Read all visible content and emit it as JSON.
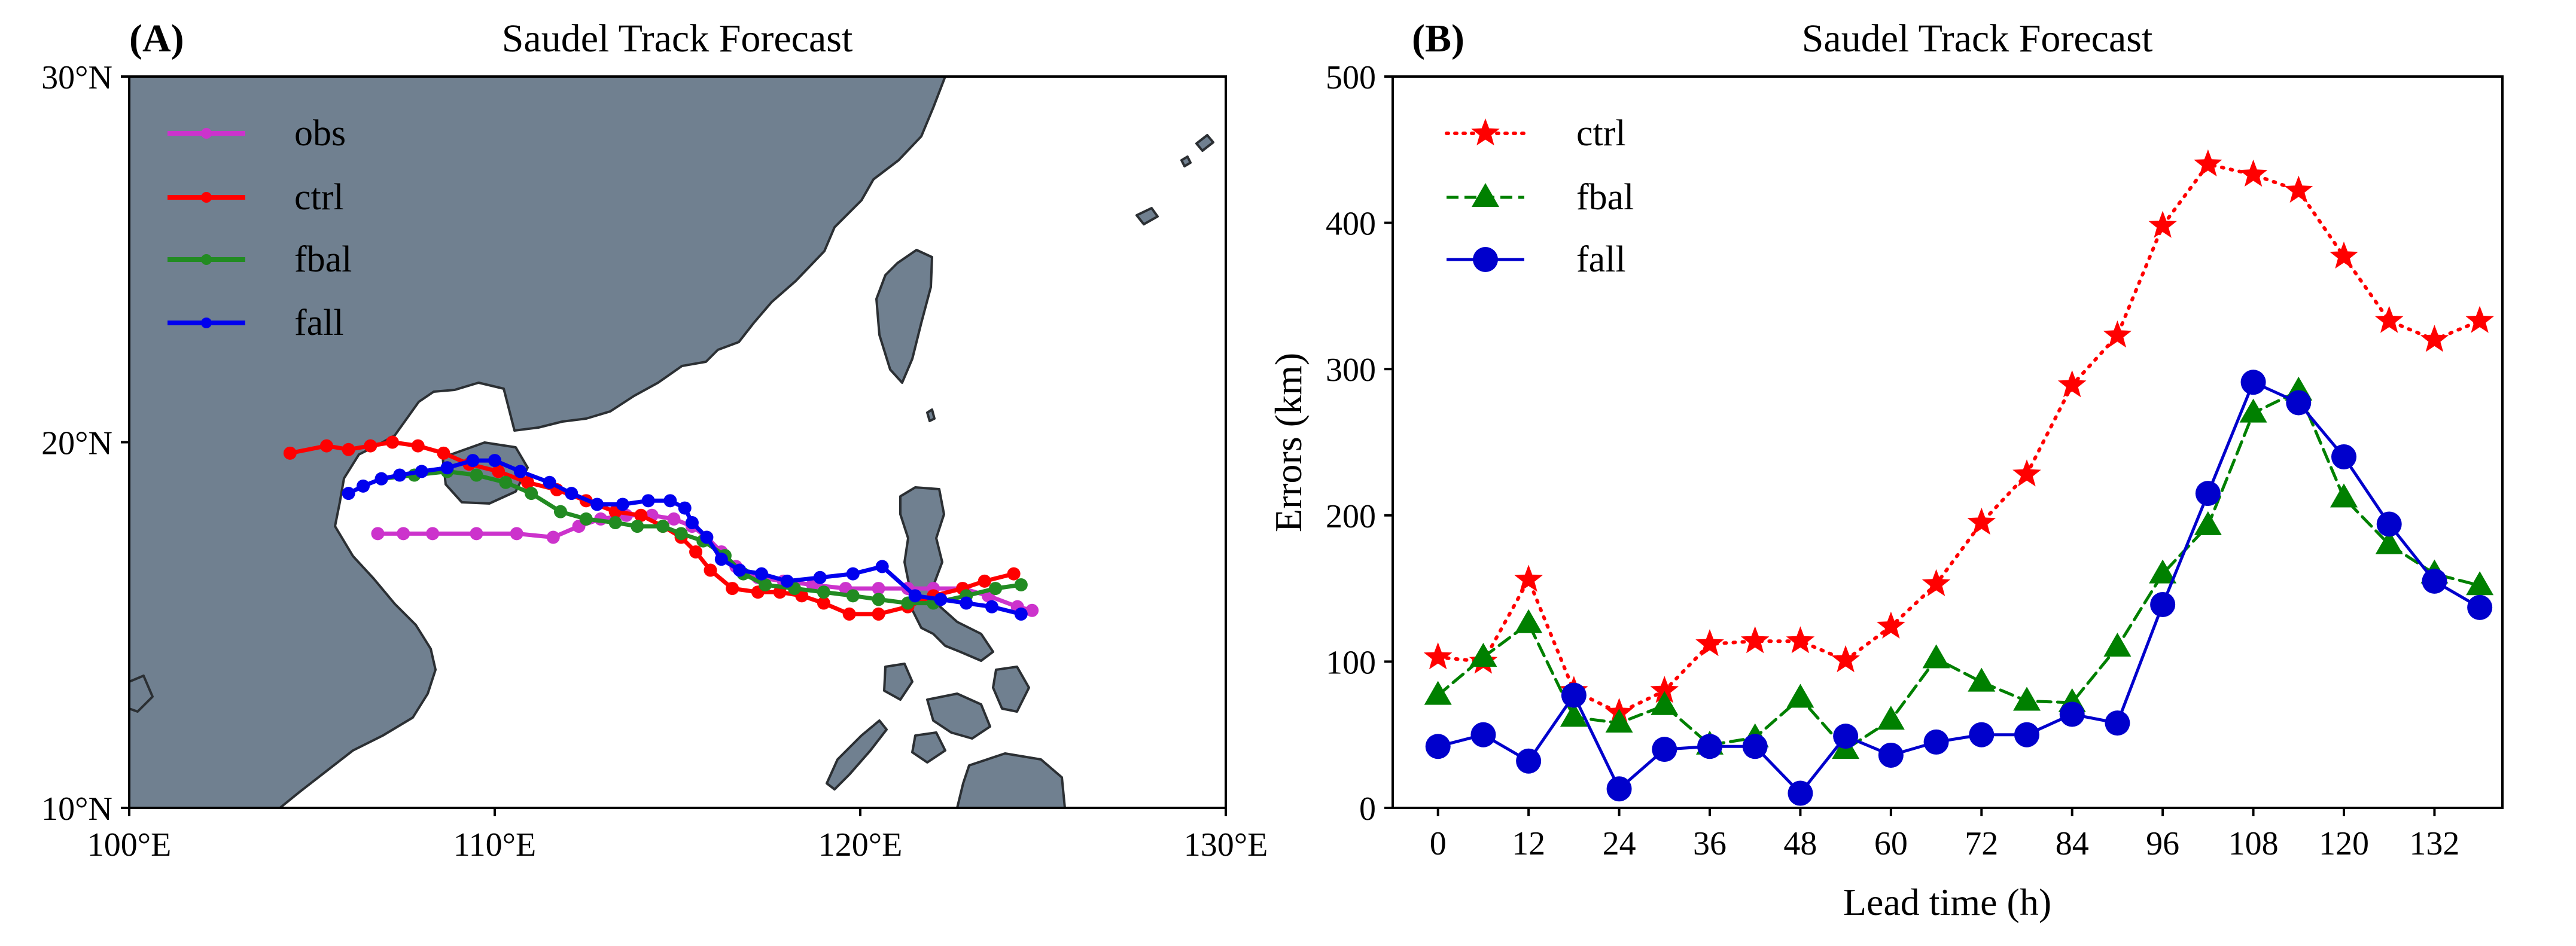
{
  "chart_data": [
    {
      "type": "map-track",
      "panel_label": "(A)",
      "title": "Saudel Track Forecast",
      "xlim": [
        100,
        130
      ],
      "ylim": [
        10,
        30
      ],
      "xticks": [
        100,
        110,
        120,
        130
      ],
      "yticks": [
        10,
        20,
        30
      ],
      "xtick_labels": [
        "100°E",
        "110°E",
        "120°E",
        "130°E"
      ],
      "ytick_labels": [
        "10°N",
        "20°N",
        "30°N"
      ],
      "legend": {
        "position": "top-left",
        "entries": [
          "obs",
          "ctrl",
          "fbal",
          "fall"
        ]
      },
      "land_color": "#708090",
      "series": [
        {
          "name": "obs",
          "color": "#cc33cc",
          "points": [
            [
              124.7,
              15.4
            ],
            [
              124.3,
              15.5
            ],
            [
              123.5,
              15.8
            ],
            [
              122.8,
              16.0
            ],
            [
              122.0,
              16.0
            ],
            [
              121.3,
              16.0
            ],
            [
              120.5,
              16.0
            ],
            [
              119.6,
              16.0
            ],
            [
              118.7,
              16.1
            ],
            [
              117.9,
              16.2
            ],
            [
              117.2,
              16.3
            ],
            [
              116.6,
              16.6
            ],
            [
              116.2,
              17.0
            ],
            [
              115.8,
              17.4
            ],
            [
              115.4,
              17.7
            ],
            [
              114.9,
              17.9
            ],
            [
              114.3,
              18.0
            ],
            [
              113.6,
              18.0
            ],
            [
              112.9,
              17.9
            ],
            [
              112.3,
              17.7
            ],
            [
              111.6,
              17.4
            ],
            [
              110.6,
              17.5
            ],
            [
              109.5,
              17.5
            ],
            [
              108.3,
              17.5
            ],
            [
              107.5,
              17.5
            ],
            [
              106.8,
              17.5
            ]
          ]
        },
        {
          "name": "ctrl",
          "color": "#ff0000",
          "points": [
            [
              124.2,
              16.4
            ],
            [
              123.4,
              16.2
            ],
            [
              122.8,
              16.0
            ],
            [
              122.0,
              15.8
            ],
            [
              121.3,
              15.5
            ],
            [
              120.5,
              15.3
            ],
            [
              119.7,
              15.3
            ],
            [
              119.0,
              15.6
            ],
            [
              118.4,
              15.8
            ],
            [
              117.8,
              15.9
            ],
            [
              117.2,
              15.9
            ],
            [
              116.5,
              16.0
            ],
            [
              115.9,
              16.5
            ],
            [
              115.5,
              17.0
            ],
            [
              115.1,
              17.4
            ],
            [
              114.6,
              17.7
            ],
            [
              114.0,
              18.0
            ],
            [
              113.3,
              18.1
            ],
            [
              112.5,
              18.4
            ],
            [
              111.7,
              18.7
            ],
            [
              110.9,
              18.9
            ],
            [
              110.1,
              19.2
            ],
            [
              109.3,
              19.4
            ],
            [
              108.6,
              19.7
            ],
            [
              107.9,
              19.9
            ],
            [
              107.2,
              20.0
            ],
            [
              106.6,
              19.9
            ],
            [
              106.0,
              19.8
            ],
            [
              105.4,
              19.9
            ],
            [
              104.4,
              19.7
            ]
          ]
        },
        {
          "name": "fbal",
          "color": "#228b22",
          "points": [
            [
              124.4,
              16.1
            ],
            [
              123.7,
              16.0
            ],
            [
              122.9,
              15.8
            ],
            [
              122.0,
              15.6
            ],
            [
              121.3,
              15.6
            ],
            [
              120.5,
              15.7
            ],
            [
              119.8,
              15.8
            ],
            [
              119.0,
              15.9
            ],
            [
              118.2,
              16.0
            ],
            [
              117.4,
              16.1
            ],
            [
              116.8,
              16.4
            ],
            [
              116.3,
              16.9
            ],
            [
              115.7,
              17.3
            ],
            [
              115.1,
              17.5
            ],
            [
              114.6,
              17.7
            ],
            [
              113.9,
              17.7
            ],
            [
              113.3,
              17.8
            ],
            [
              112.5,
              17.9
            ],
            [
              111.8,
              18.1
            ],
            [
              111.0,
              18.6
            ],
            [
              110.3,
              18.9
            ],
            [
              109.5,
              19.1
            ],
            [
              108.7,
              19.2
            ],
            [
              107.8,
              19.1
            ],
            [
              106.9,
              19.0
            ]
          ]
        },
        {
          "name": "fall",
          "color": "#0000ee",
          "points": [
            [
              124.4,
              15.3
            ],
            [
              123.6,
              15.5
            ],
            [
              122.9,
              15.6
            ],
            [
              122.2,
              15.7
            ],
            [
              121.5,
              15.8
            ],
            [
              120.6,
              16.6
            ],
            [
              119.8,
              16.4
            ],
            [
              118.9,
              16.3
            ],
            [
              118.0,
              16.2
            ],
            [
              117.3,
              16.4
            ],
            [
              116.7,
              16.5
            ],
            [
              116.2,
              16.8
            ],
            [
              115.8,
              17.4
            ],
            [
              115.4,
              17.8
            ],
            [
              115.2,
              18.2
            ],
            [
              114.8,
              18.4
            ],
            [
              114.2,
              18.4
            ],
            [
              113.5,
              18.3
            ],
            [
              112.8,
              18.3
            ],
            [
              112.1,
              18.6
            ],
            [
              111.5,
              18.9
            ],
            [
              110.7,
              19.2
            ],
            [
              110.0,
              19.5
            ],
            [
              109.4,
              19.5
            ],
            [
              108.7,
              19.3
            ],
            [
              108.0,
              19.2
            ],
            [
              107.4,
              19.1
            ],
            [
              106.9,
              19.0
            ],
            [
              106.4,
              18.8
            ],
            [
              106.0,
              18.6
            ]
          ]
        }
      ]
    },
    {
      "type": "line",
      "panel_label": "(B)",
      "title": "Saudel Track Forecast",
      "xlabel": "Lead time (h)",
      "ylabel": "Errors (km)",
      "xlim": [
        -6,
        141
      ],
      "ylim": [
        0,
        500
      ],
      "xticks": [
        0,
        12,
        24,
        36,
        48,
        60,
        72,
        84,
        96,
        108,
        120,
        132
      ],
      "yticks": [
        0,
        100,
        200,
        300,
        400,
        500
      ],
      "legend": {
        "position": "top-left",
        "entries": [
          "ctrl",
          "fbal",
          "fall"
        ]
      },
      "x": [
        0,
        6,
        12,
        18,
        24,
        30,
        36,
        42,
        48,
        54,
        60,
        66,
        72,
        78,
        84,
        90,
        96,
        102,
        108,
        114,
        120,
        126,
        132,
        138
      ],
      "series": [
        {
          "name": "ctrl",
          "color": "#ff0000",
          "linestyle": "dotted",
          "marker": "star",
          "values": [
            103,
            100,
            156,
            80,
            65,
            80,
            112,
            114,
            114,
            101,
            124,
            153,
            195,
            228,
            289,
            323,
            398,
            440,
            433,
            422,
            377,
            333,
            320,
            333
          ]
        },
        {
          "name": "fbal",
          "color": "#008000",
          "linestyle": "dashed",
          "marker": "triangle",
          "values": [
            77,
            103,
            126,
            62,
            58,
            70,
            43,
            48,
            75,
            40,
            60,
            102,
            86,
            73,
            72,
            110,
            160,
            193,
            270,
            285,
            212,
            180,
            160,
            152
          ]
        },
        {
          "name": "fall",
          "color": "#0000cc",
          "linestyle": "solid",
          "marker": "circle",
          "values": [
            42,
            50,
            32,
            77,
            13,
            40,
            42,
            42,
            10,
            49,
            36,
            45,
            50,
            50,
            64,
            58,
            139,
            215,
            291,
            277,
            240,
            194,
            155,
            137
          ]
        }
      ]
    }
  ]
}
